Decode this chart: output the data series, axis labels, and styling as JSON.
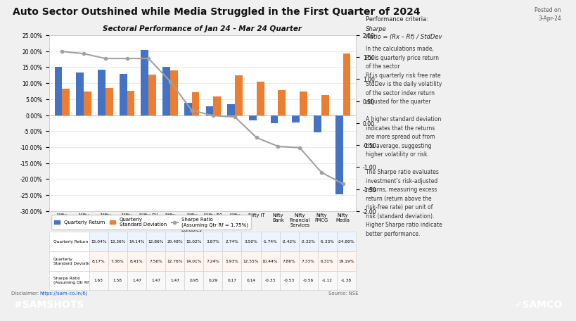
{
  "title_main": "Auto Sector Outshined while Media Struggled in the First Quarter of 2024",
  "chart_title": "Sectoral Performance of Jan 24 - Mar 24 Quarter",
  "posted_on": "Posted on\n3-Apr-24",
  "categories": [
    "Nifty\nAuto",
    "Nifty\nHealthca\nre",
    "Nifty\nInfrastru\ncture",
    "Nifty\nPharma",
    "Nifty Oil\n& Gas",
    "Nifty\nRealty",
    "Nifty\nConsum\ner\nDurables",
    "Nifty 50",
    "Nifty\nMetal",
    "Nifty IT",
    "Nifty\nBank",
    "Nifty\nFinancial\nServices",
    "Nifty\nFMCG",
    "Nifty\nMedia"
  ],
  "quarterly_return": [
    15.04,
    13.36,
    14.14,
    12.86,
    20.48,
    15.02,
    3.87,
    2.74,
    3.5,
    -1.74,
    -2.42,
    -2.32,
    -5.33,
    -24.8
  ],
  "quarterly_std_dev": [
    8.17,
    7.36,
    8.41,
    7.56,
    12.76,
    14.01,
    7.24,
    5.93,
    12.55,
    10.44,
    7.86,
    7.33,
    6.31,
    19.19
  ],
  "sharpe_ratio": [
    1.63,
    1.58,
    1.47,
    1.47,
    1.47,
    0.95,
    0.29,
    0.17,
    0.14,
    -0.33,
    -0.53,
    -0.56,
    -1.12,
    -1.38
  ],
  "bar_color_return": "#4472C4",
  "bar_color_std": "#ED7D31",
  "line_color": "#A0A0A0",
  "footer_color": "#E8836A",
  "ylim_left": [
    -30.0,
    25.0
  ],
  "ylim_right": [
    -2.0,
    2.0
  ],
  "yticks_left": [
    -30.0,
    -25.0,
    -20.0,
    -15.0,
    -10.0,
    -5.0,
    0.0,
    5.0,
    10.0,
    15.0,
    20.0,
    25.0
  ],
  "yticks_right": [
    -2.0,
    -1.5,
    -1.0,
    -0.5,
    0.0,
    0.5,
    1.0,
    1.5,
    2.0
  ],
  "disclaimer_text": "Disclaimer: ",
  "disclaimer_link": "https://sam-co.in/6j",
  "source_text": "Source: NSE",
  "right_panel_line1": "Performance criteria:",
  "right_panel_line2": "Sharpe",
  "right_panel_line3": "Ratio = (Rx – Rf) / StdDev",
  "right_panel_body": "In the calculations made,\nRx is quarterly price return\nof the sector\nRf is quarterly risk free rate\nStdDev is the daily volatility\nof the sector index return\nadjusted for the quarter\n\nA higher standard deviation\nindicates that the returns\nare more spread out from\nthe average, suggesting\nhigher volatility or risk.\n\nThe Sharpe ratio evaluates\ninvestment’s risk-adjusted\nreturns, measuring excess\nreturn (return above the\nrisk-free rate) per unit of\nrisk (standard deviation).\nHigher Sharpe ratio indicate\nbetter performance.",
  "table_row1_label": "Quarterly Return",
  "table_row2_label": "Quarterly\nStandard Deviation",
  "table_row3_label": "Sharpe Ratio\n(Assuming Qtr Rf = 1.75%)",
  "samshots_text": "#SAMSHOTS",
  "samco_text": "✓SAMCO"
}
